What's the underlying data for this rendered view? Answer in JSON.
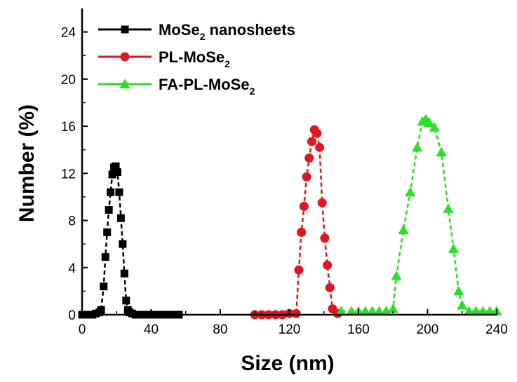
{
  "chart_data": {
    "type": "scatter",
    "xlabel": "Size (nm)",
    "ylabel": "Number (%)",
    "xlim": [
      0,
      240
    ],
    "ylim": [
      0,
      26
    ],
    "xticks": [
      0,
      40,
      80,
      120,
      160,
      200,
      240
    ],
    "yticks": [
      0,
      4,
      8,
      12,
      16,
      20,
      24
    ],
    "legend_position": "top-left",
    "series": [
      {
        "name": "MoSe2 nanosheets",
        "name_main": "MoSe",
        "name_sub": "2",
        "name_rest": " nanosheets",
        "color": "#000000",
        "marker": "square",
        "x": [
          0,
          2,
          4,
          6,
          8,
          10,
          11,
          12.5,
          13.5,
          14.5,
          15.5,
          16.5,
          17.5,
          18.5,
          19.5,
          20.5,
          21.5,
          22.5,
          23.5,
          24.5,
          25.5,
          26.5,
          27.5,
          29,
          31,
          33,
          36,
          40,
          44,
          48,
          52,
          56
        ],
        "y": [
          0,
          0,
          0,
          0,
          0.1,
          0.2,
          0.4,
          2.4,
          4.9,
          7.0,
          8.9,
          10.4,
          11.9,
          12.5,
          12.6,
          12.1,
          10.4,
          8.2,
          6.0,
          3.5,
          1.2,
          0.4,
          0.2,
          0.1,
          0,
          0,
          0,
          0,
          0,
          0,
          0,
          0
        ]
      },
      {
        "name": "PL-MoSe2",
        "name_main": "PL-MoSe",
        "name_sub": "2",
        "name_rest": "",
        "color": "#e8141b",
        "marker": "circle",
        "x": [
          100,
          104,
          108,
          112,
          116,
          120,
          124,
          125.5,
          127,
          128.5,
          130,
          131.5,
          133,
          134.5,
          136,
          137.5,
          139,
          140.5,
          142,
          143.5,
          145,
          148
        ],
        "y": [
          0,
          0,
          0,
          0,
          0,
          0.1,
          0.1,
          3.8,
          7.0,
          9.2,
          11.7,
          13.3,
          14.7,
          15.7,
          15.4,
          14.2,
          9.5,
          6.5,
          4.2,
          2.3,
          0.5,
          0.1
        ]
      },
      {
        "name": "FA-PL-MoSe2",
        "name_main": "FA-PL-MoSe",
        "name_sub": "2",
        "name_rest": "",
        "color": "#22e61c",
        "marker": "triangle",
        "x": [
          150,
          156,
          160,
          164,
          168,
          172,
          176,
          180,
          182,
          186,
          190,
          194,
          197,
          199,
          201,
          204,
          208,
          212,
          215,
          218,
          220,
          224,
          228,
          232,
          236,
          240
        ],
        "y": [
          0.3,
          0.3,
          0.3,
          0.3,
          0.3,
          0.3,
          0.3,
          0.5,
          3.3,
          7.2,
          10.4,
          14.2,
          16.4,
          16.6,
          16.3,
          15.9,
          13.8,
          9.0,
          5.6,
          2.0,
          0.8,
          0.3,
          0.3,
          0.3,
          0.3,
          0.3
        ]
      }
    ]
  }
}
